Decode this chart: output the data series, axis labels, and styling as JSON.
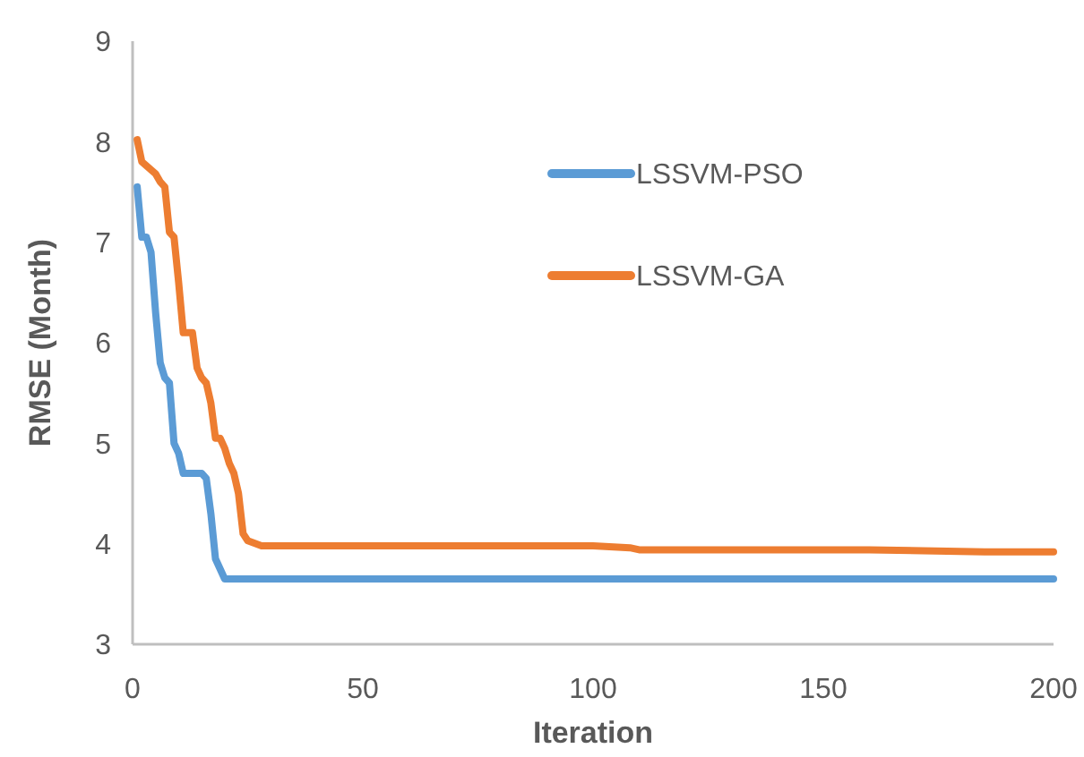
{
  "chart_data": {
    "type": "line",
    "xlabel": "Iteration",
    "ylabel": "RMSE (Month)",
    "xlim": [
      0,
      200
    ],
    "xticks": [
      0,
      50,
      100,
      150,
      200
    ],
    "ylim": [
      3,
      9
    ],
    "yticks": [
      3,
      4,
      5,
      6,
      7,
      8,
      9
    ],
    "grid": false,
    "legend": "top right",
    "marker": "none",
    "line_style": "solid",
    "series": [
      {
        "name": "LSSVM-PSO",
        "color": "#5b9bd5",
        "x": [
          1,
          2,
          3,
          4,
          5,
          6,
          7,
          8,
          9,
          10,
          11,
          15,
          16,
          17,
          18,
          19,
          20,
          200
        ],
        "values": [
          7.55,
          7.05,
          7.05,
          6.9,
          6.3,
          5.8,
          5.65,
          5.6,
          5.0,
          4.9,
          4.7,
          4.7,
          4.65,
          4.3,
          3.85,
          3.75,
          3.65,
          3.65
        ]
      },
      {
        "name": "LSSVM-GA",
        "color": "#ed7d31",
        "x": [
          1,
          2,
          4,
          5,
          6,
          7,
          8,
          9,
          10,
          11,
          13,
          14,
          15,
          16,
          17,
          18,
          19,
          20,
          21,
          22,
          23,
          24,
          25,
          28,
          100,
          108,
          110,
          160,
          185,
          200
        ],
        "values": [
          8.02,
          7.8,
          7.72,
          7.68,
          7.6,
          7.55,
          7.1,
          7.05,
          6.6,
          6.1,
          6.1,
          5.75,
          5.65,
          5.6,
          5.4,
          5.05,
          5.05,
          4.95,
          4.8,
          4.7,
          4.5,
          4.1,
          4.03,
          3.98,
          3.98,
          3.96,
          3.94,
          3.94,
          3.92,
          3.92
        ]
      }
    ]
  }
}
